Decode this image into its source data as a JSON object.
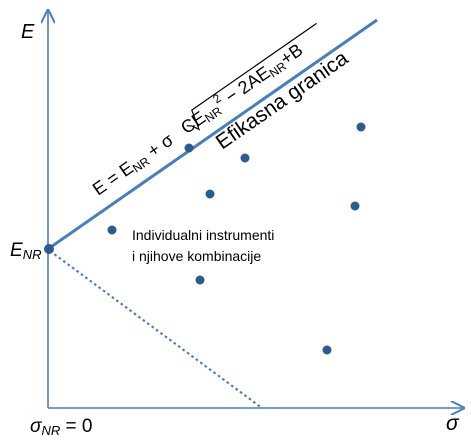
{
  "axes": {
    "y_label": "E",
    "x_label": "σ",
    "origin_label": "σ",
    "origin_subscript": "NR",
    "origin_suffix": " = 0",
    "intercept_label": "E",
    "intercept_subscript": "NR"
  },
  "frontier": {
    "label": "Efikasna granica",
    "formula": {
      "p1": "E = E",
      "s1": "NR",
      "p2": " + σ",
      "p3": "CE",
      "s2": "NR",
      "sup": "2",
      "p4": " − 2AE",
      "s3": "NR",
      "p5": "+B"
    }
  },
  "cloud_label": {
    "line1": "Individualni instrumenti",
    "line2": "i njihove kombinacije"
  },
  "colors": {
    "axis": "#4a7ebb",
    "frontier": "#4a7ebb",
    "points": "#2e5a8e",
    "dotted": "#4a7ebb"
  }
}
